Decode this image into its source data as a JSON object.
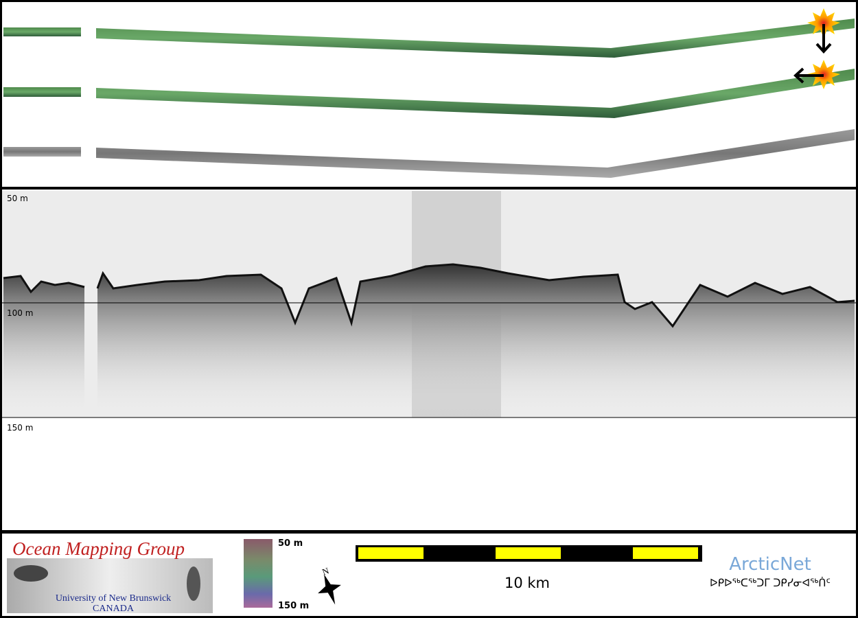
{
  "profile": {
    "depth_labels": [
      "50 m",
      "100 m",
      "150 m"
    ]
  },
  "legend": {
    "logo": {
      "title": "Ocean Mapping Group",
      "institution": "University of New Brunswick",
      "country": "CANADA"
    },
    "colorbar": {
      "top_label": "50 m",
      "bottom_label": "150 m"
    },
    "compass": "N",
    "scale_bar": "10 km",
    "partner": {
      "name": "ArcticNet",
      "inuktitut": "ᐅᑭᐅᖅᑕᖅᑐᒥ ᑐᑭᓯᓂᐊᖅᑏᑦ"
    }
  }
}
